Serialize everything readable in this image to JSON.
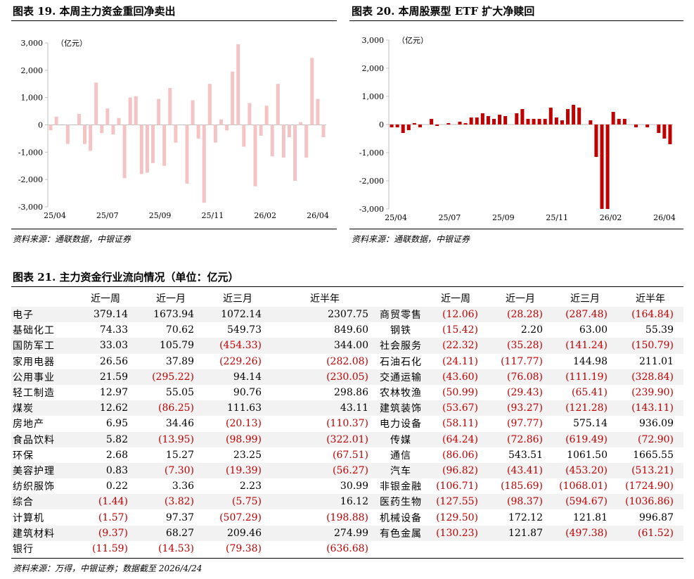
{
  "figures": {
    "fig19": {
      "title": "图表 19. 本周主力资金重回净卖出",
      "unit": "（亿元）",
      "source": "资料来源：通联数据，中银证券"
    },
    "fig20": {
      "title": "图表 20. 本周股票型 ETF 扩大净赎回",
      "unit": "（亿元）",
      "source": "资料来源：通联数据，中银证券"
    },
    "fig21": {
      "title": "图表 21. 主力资金行业流向情况（单位：亿元）",
      "source": "资料来源：万得，中银证券；数据截至 2026/4/24"
    }
  },
  "colors": {
    "fig19_bar": "#f4c4c4",
    "fig20_bar": "#c00000",
    "negative_text": "#c00000",
    "alt_row": "#f2f2f2"
  },
  "chart_data": [
    {
      "type": "bar",
      "title": "",
      "xlabel": "",
      "ylabel": "（亿元）",
      "ylim": [
        -3000,
        3000
      ],
      "yticks": [
        "3,000",
        "2,000",
        "1,000",
        "0",
        "-1,000",
        "-2,000",
        "-3,000"
      ],
      "xtick_labels": [
        "25/04",
        "25/07",
        "25/09",
        "25/11",
        "26/02",
        "26/04"
      ],
      "grid": false,
      "values": [
        -200,
        300,
        0,
        -700,
        0,
        400,
        -700,
        -950,
        1550,
        -300,
        600,
        -350,
        250,
        -1950,
        1000,
        1050,
        -1800,
        -1750,
        -1400,
        950,
        -1500,
        1350,
        -650,
        0,
        -2150,
        900,
        -500,
        -2850,
        1500,
        -650,
        200,
        -200,
        1950,
        2950,
        -800,
        800,
        -2250,
        -400,
        700,
        -1150,
        1500,
        -1200,
        -450,
        -2050,
        100,
        -1200,
        2450,
        950,
        -450
      ]
    },
    {
      "type": "bar",
      "title": "",
      "xlabel": "",
      "ylabel": "（亿元）",
      "ylim": [
        -3000,
        3000
      ],
      "yticks": [
        "3,000",
        "2,000",
        "1,000",
        "0",
        "-1,000",
        "-2,000",
        "-3,000"
      ],
      "xtick_labels": [
        "25/04",
        "25/07",
        "25/09",
        "25/11",
        "26/02",
        "26/04"
      ],
      "grid": false,
      "values": [
        -100,
        -100,
        -300,
        -200,
        50,
        -100,
        0,
        200,
        -50,
        0,
        50,
        0,
        100,
        50,
        250,
        250,
        400,
        300,
        200,
        350,
        300,
        0,
        400,
        550,
        200,
        200,
        200,
        200,
        600,
        250,
        150,
        550,
        700,
        600,
        0,
        150,
        -1150,
        -3000,
        -3000,
        450,
        200,
        200,
        0,
        -100,
        0,
        -100,
        0,
        -300,
        -500,
        -700
      ]
    },
    {
      "type": "table",
      "columns": [
        "",
        "近一周",
        "近一月",
        "近三月",
        "近半年",
        "",
        "近一周",
        "近一月",
        "近三月",
        "近半年"
      ],
      "rows": [
        {
          "l": [
            "电子",
            "379.14",
            "1673.94",
            "1072.14",
            "2307.75"
          ],
          "r": [
            "商贸零售",
            "(12.06)",
            "(28.28)",
            "(287.48)",
            "(164.84)"
          ]
        },
        {
          "l": [
            "基础化工",
            "74.33",
            "70.62",
            "549.73",
            "849.60"
          ],
          "r": [
            "钢铁",
            "(15.42)",
            "2.20",
            "63.00",
            "55.39"
          ]
        },
        {
          "l": [
            "国防军工",
            "33.03",
            "105.79",
            "(454.33)",
            "344.00"
          ],
          "r": [
            "社会服务",
            "(22.32)",
            "(35.28)",
            "(141.24)",
            "(150.79)"
          ]
        },
        {
          "l": [
            "家用电器",
            "26.56",
            "37.89",
            "(229.26)",
            "(282.08)"
          ],
          "r": [
            "石油石化",
            "(24.11)",
            "(117.77)",
            "144.98",
            "211.01"
          ]
        },
        {
          "l": [
            "公用事业",
            "21.59",
            "(295.22)",
            "94.14",
            "(230.05)"
          ],
          "r": [
            "交通运输",
            "(43.60)",
            "(76.08)",
            "(111.19)",
            "(328.84)"
          ]
        },
        {
          "l": [
            "轻工制造",
            "12.97",
            "55.05",
            "90.76",
            "298.86"
          ],
          "r": [
            "农林牧渔",
            "(50.99)",
            "(29.43)",
            "(65.41)",
            "(239.90)"
          ]
        },
        {
          "l": [
            "煤炭",
            "12.62",
            "(86.25)",
            "111.63",
            "43.11"
          ],
          "r": [
            "建筑装饰",
            "(53.67)",
            "(93.27)",
            "(121.28)",
            "(143.11)"
          ]
        },
        {
          "l": [
            "房地产",
            "6.95",
            "34.46",
            "(20.13)",
            "(110.37)"
          ],
          "r": [
            "电力设备",
            "(58.11)",
            "(97.77)",
            "575.14",
            "936.09"
          ]
        },
        {
          "l": [
            "食品饮料",
            "5.82",
            "(13.95)",
            "(98.99)",
            "(322.01)"
          ],
          "r": [
            "传媒",
            "(64.24)",
            "(72.86)",
            "(619.49)",
            "(72.90)"
          ]
        },
        {
          "l": [
            "环保",
            "2.68",
            "15.27",
            "23.25",
            "(67.51)"
          ],
          "r": [
            "通信",
            "(86.06)",
            "543.51",
            "1061.50",
            "1665.55"
          ]
        },
        {
          "l": [
            "美容护理",
            "0.83",
            "(7.30)",
            "(19.39)",
            "(56.27)"
          ],
          "r": [
            "汽车",
            "(96.82)",
            "(43.41)",
            "(453.20)",
            "(513.21)"
          ]
        },
        {
          "l": [
            "纺织服饰",
            "0.22",
            "3.36",
            "2.23",
            "30.99"
          ],
          "r": [
            "非银金融",
            "(106.71)",
            "(185.69)",
            "(1068.01)",
            "(1724.90)"
          ]
        },
        {
          "l": [
            "综合",
            "(1.44)",
            "(3.82)",
            "(5.75)",
            "16.12"
          ],
          "r": [
            "医药生物",
            "(127.55)",
            "(98.37)",
            "(594.67)",
            "(1036.86)"
          ]
        },
        {
          "l": [
            "计算机",
            "(1.57)",
            "97.37",
            "(507.29)",
            "(198.88)"
          ],
          "r": [
            "机械设备",
            "(129.50)",
            "172.12",
            "121.81",
            "996.87"
          ]
        },
        {
          "l": [
            "建筑材料",
            "(9.37)",
            "68.27",
            "209.46",
            "274.99"
          ],
          "r": [
            "有色金属",
            "(130.23)",
            "121.87",
            "(497.38)",
            "(61.52)"
          ]
        },
        {
          "l": [
            "银行",
            "(11.59)",
            "(14.53)",
            "(79.38)",
            "(636.68)"
          ],
          "r": [
            "",
            "",
            "",
            "",
            ""
          ]
        }
      ]
    }
  ]
}
